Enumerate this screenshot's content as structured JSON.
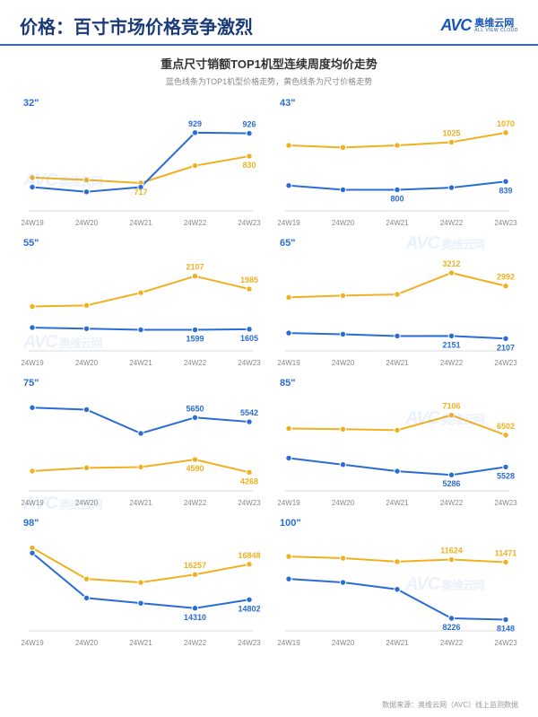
{
  "header": {
    "title": "价格：百寸市场价格竞争激烈",
    "logo_avc": "AVC",
    "logo_cn": "奥维云网",
    "logo_en": "ALL VIEW CLOUD"
  },
  "subtitle": "重点尺寸销额TOP1机型连续周度均价走势",
  "subnote": "蓝色线条为TOP1机型价格走势，黄色线条为尺寸价格走势",
  "colors": {
    "blue": "#2a6cd6",
    "yellow": "#f0b020",
    "axis": "#d8d8d8",
    "tick": "#888888",
    "bg": "#ffffff"
  },
  "chart_style": {
    "marker_radius": 3.2,
    "line_width": 2
  },
  "x_labels": [
    "24W19",
    "24W20",
    "24W21",
    "24W22",
    "24W23"
  ],
  "panels": [
    {
      "title": "32\"",
      "ylim": [
        600,
        1000
      ],
      "blue": [
        700,
        680,
        700,
        929,
        926
      ],
      "yellow": [
        740,
        730,
        717,
        790,
        830
      ],
      "labels": {
        "blue": [
          [
            3,
            929
          ],
          [
            4,
            926
          ]
        ],
        "yellow": [
          [
            2,
            717
          ],
          [
            4,
            830
          ]
        ]
      }
    },
    {
      "title": "43\"",
      "ylim": [
        700,
        1150
      ],
      "blue": [
        820,
        800,
        800,
        810,
        839
      ],
      "yellow": [
        1010,
        1000,
        1010,
        1025,
        1070
      ],
      "labels": {
        "blue": [
          [
            2,
            800
          ],
          [
            4,
            839
          ]
        ],
        "yellow": [
          [
            3,
            1025
          ],
          [
            4,
            1070
          ]
        ]
      }
    },
    {
      "title": "55\"",
      "ylim": [
        1400,
        2300
      ],
      "blue": [
        1620,
        1610,
        1600,
        1599,
        1605
      ],
      "yellow": [
        1820,
        1830,
        1950,
        2107,
        1985
      ],
      "labels": {
        "blue": [
          [
            3,
            1599
          ],
          [
            4,
            1605
          ]
        ],
        "yellow": [
          [
            3,
            2107
          ],
          [
            4,
            1985
          ]
        ]
      }
    },
    {
      "title": "65\"",
      "ylim": [
        1900,
        3500
      ],
      "blue": [
        2200,
        2180,
        2150,
        2151,
        2107
      ],
      "yellow": [
        2800,
        2830,
        2850,
        3212,
        2992
      ],
      "labels": {
        "blue": [
          [
            3,
            2151
          ],
          [
            4,
            2107
          ]
        ],
        "yellow": [
          [
            3,
            3212
          ],
          [
            4,
            2992
          ]
        ]
      }
    },
    {
      "title": "75\"",
      "ylim": [
        3800,
        6200
      ],
      "blue": [
        5900,
        5850,
        5250,
        5650,
        5542
      ],
      "yellow": [
        4300,
        4380,
        4400,
        4590,
        4268
      ],
      "labels": {
        "blue": [
          [
            3,
            5650
          ],
          [
            4,
            5542
          ]
        ],
        "yellow": [
          [
            3,
            4590
          ],
          [
            4,
            4268
          ]
        ]
      }
    },
    {
      "title": "85\"",
      "ylim": [
        4800,
        7700
      ],
      "blue": [
        5800,
        5600,
        5400,
        5286,
        5528
      ],
      "yellow": [
        6700,
        6680,
        6650,
        7106,
        6502
      ],
      "labels": {
        "blue": [
          [
            3,
            5286
          ],
          [
            4,
            5528
          ]
        ],
        "yellow": [
          [
            3,
            7106
          ],
          [
            4,
            6502
          ]
        ]
      }
    },
    {
      "title": "98\"",
      "ylim": [
        13000,
        18500
      ],
      "blue": [
        17500,
        14900,
        14600,
        14310,
        14802
      ],
      "yellow": [
        17800,
        16000,
        15800,
        16257,
        16848
      ],
      "labels": {
        "blue": [
          [
            3,
            14310
          ],
          [
            4,
            14802
          ]
        ],
        "yellow": [
          [
            3,
            16257
          ],
          [
            4,
            16848
          ]
        ]
      }
    },
    {
      "title": "100\"",
      "ylim": [
        7500,
        13000
      ],
      "blue": [
        10500,
        10300,
        9900,
        8226,
        8148
      ],
      "yellow": [
        11800,
        11700,
        11500,
        11624,
        11471
      ],
      "labels": {
        "blue": [
          [
            3,
            8226
          ],
          [
            4,
            8148
          ]
        ],
        "yellow": [
          [
            3,
            11624
          ],
          [
            4,
            11471
          ]
        ]
      }
    }
  ],
  "footer": "数据来源：奥维云网（AVC）线上监测数据",
  "watermark": {
    "avc": "AVC",
    "cn": "奥维云网"
  }
}
